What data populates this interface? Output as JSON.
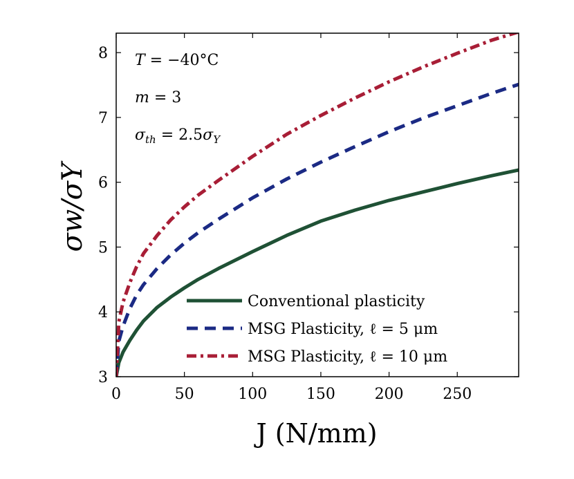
{
  "chart_data": {
    "type": "line",
    "xlabel": "J (N/mm)",
    "ylabel": "σw/σY",
    "xlim": [
      0,
      295
    ],
    "ylim": [
      3,
      8.3
    ],
    "xticks": [
      0,
      50,
      100,
      150,
      200,
      250
    ],
    "yticks": [
      3,
      4,
      5,
      6,
      7,
      8
    ],
    "x": [
      0,
      2,
      5,
      10,
      15,
      20,
      30,
      40,
      50,
      60,
      75,
      100,
      125,
      150,
      175,
      200,
      225,
      250,
      275,
      295
    ],
    "series": [
      {
        "name": "Conventional plasticity",
        "color": "#1f5135",
        "dash": "solid",
        "values": [
          3.0,
          3.22,
          3.38,
          3.56,
          3.72,
          3.86,
          4.07,
          4.23,
          4.37,
          4.5,
          4.67,
          4.93,
          5.18,
          5.4,
          5.57,
          5.72,
          5.85,
          5.98,
          6.1,
          6.19
        ]
      },
      {
        "name": "MSG Plasticity, ℓ = 5 μm",
        "color": "#1b2a84",
        "dash": "dashed",
        "values": [
          3.0,
          3.55,
          3.78,
          4.05,
          4.26,
          4.42,
          4.67,
          4.88,
          5.06,
          5.22,
          5.43,
          5.76,
          6.05,
          6.31,
          6.55,
          6.78,
          6.99,
          7.18,
          7.37,
          7.51
        ]
      },
      {
        "name": "MSG Plasticity, ℓ = 10 μm",
        "color": "#a81e36",
        "dash": "dashdot",
        "values": [
          3.0,
          3.85,
          4.15,
          4.45,
          4.7,
          4.9,
          5.18,
          5.42,
          5.62,
          5.8,
          6.03,
          6.4,
          6.74,
          7.03,
          7.3,
          7.55,
          7.78,
          7.99,
          8.19,
          8.32
        ]
      }
    ],
    "annotations": [
      {
        "name": "temperature",
        "parts": [
          "T",
          " = −40°C"
        ]
      },
      {
        "name": "m-value",
        "parts": [
          "m",
          " = 3"
        ]
      },
      {
        "name": "sigma-th",
        "parts": [
          "σ",
          "th",
          " = 2.5",
          "σ",
          "Y"
        ]
      }
    ],
    "legend_position": "bottom-right"
  }
}
